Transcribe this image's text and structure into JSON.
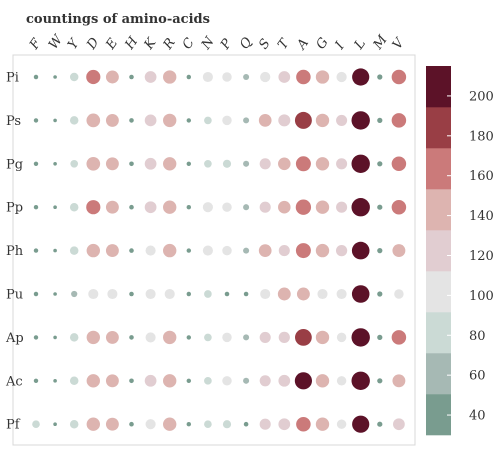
{
  "chart_data": {
    "type": "heatmap",
    "title": "countings of amino-acids",
    "columns": [
      "F",
      "W",
      "Y",
      "D",
      "E",
      "H",
      "K",
      "R",
      "C",
      "N",
      "P",
      "Q",
      "S",
      "T",
      "A",
      "G",
      "I",
      "L",
      "M",
      "V"
    ],
    "rows": [
      "Pi",
      "Ps",
      "Pg",
      "Pp",
      "Ph",
      "Pu",
      "Ap",
      "Ac",
      "Pf"
    ],
    "values": [
      [
        38,
        28,
        88,
        158,
        142,
        40,
        128,
        148,
        38,
        108,
        100,
        58,
        110,
        128,
        162,
        148,
        110,
        195,
        48,
        162
      ],
      [
        38,
        28,
        88,
        152,
        142,
        40,
        128,
        148,
        38,
        78,
        100,
        58,
        140,
        132,
        192,
        148,
        120,
        210,
        48,
        162
      ],
      [
        38,
        28,
        78,
        152,
        142,
        40,
        128,
        148,
        38,
        78,
        84,
        58,
        120,
        138,
        168,
        148,
        120,
        210,
        48,
        162
      ],
      [
        38,
        28,
        88,
        158,
        142,
        40,
        128,
        148,
        38,
        108,
        100,
        58,
        120,
        138,
        172,
        148,
        120,
        210,
        48,
        162
      ],
      [
        38,
        28,
        88,
        148,
        142,
        40,
        108,
        148,
        38,
        108,
        100,
        58,
        140,
        120,
        168,
        148,
        122,
        200,
        48,
        142
      ],
      [
        38,
        28,
        60,
        108,
        108,
        40,
        108,
        108,
        38,
        78,
        40,
        40,
        108,
        142,
        142,
        108,
        108,
        200,
        48,
        100
      ],
      [
        38,
        28,
        88,
        148,
        142,
        40,
        108,
        148,
        38,
        78,
        100,
        58,
        120,
        122,
        190,
        148,
        100,
        210,
        48,
        162
      ],
      [
        38,
        28,
        88,
        148,
        142,
        40,
        128,
        148,
        38,
        78,
        100,
        58,
        120,
        128,
        195,
        148,
        100,
        210,
        48,
        142
      ],
      [
        78,
        28,
        88,
        148,
        142,
        40,
        108,
        148,
        38,
        78,
        84,
        40,
        120,
        128,
        162,
        148,
        100,
        195,
        48,
        128
      ]
    ],
    "colorbar": {
      "ticks": [
        40,
        60,
        80,
        100,
        120,
        140,
        160,
        180,
        200
      ],
      "range": [
        30,
        215
      ],
      "colors": [
        "#799c8f",
        "#a6b9b4",
        "#cbdad5",
        "#e4e4e4",
        "#e1cdd1",
        "#ddb4b0",
        "#cb7a7a",
        "#993e45",
        "#5c1228"
      ]
    }
  }
}
